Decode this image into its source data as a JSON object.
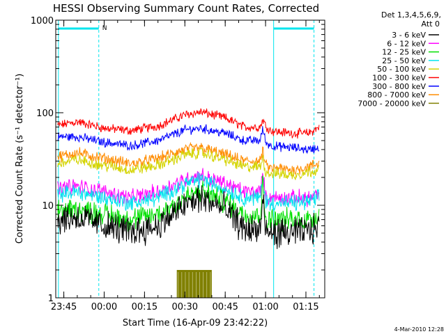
{
  "chart_data": {
    "type": "line",
    "title": "HESSI Observing Summary Count Rates, Corrected",
    "ylabel": "Corrected Count Rate (s⁻¹ detector⁻¹)",
    "xlabel": "Start Time (16-Apr-09 23:42:22)",
    "y_scale": "log",
    "ylim": [
      1,
      1000
    ],
    "xlim": [
      "23:42",
      "01:22"
    ],
    "y_ticks": [
      {
        "v": 1,
        "label": "1"
      },
      {
        "v": 10,
        "label": "10"
      },
      {
        "v": 100,
        "label": "100"
      },
      {
        "v": 1000,
        "label": "1000"
      }
    ],
    "x_ticks": [
      {
        "t": "23:45",
        "label": "23:45"
      },
      {
        "t": "00:00",
        "label": "00:00"
      },
      {
        "t": "00:15",
        "label": "00:15"
      },
      {
        "t": "00:30",
        "label": "00:30"
      },
      {
        "t": "00:45",
        "label": "00:45"
      },
      {
        "t": "01:00",
        "label": "01:00"
      },
      {
        "t": "01:15",
        "label": "01:15"
      }
    ],
    "legend": {
      "position": "right",
      "header": [
        "Det 1,3,4,5,6,9,",
        "Att 0"
      ],
      "entries": [
        {
          "label": "3 - 6 keV",
          "color": "#000000"
        },
        {
          "label": "6 - 12 keV",
          "color": "#ff00ff"
        },
        {
          "label": "12 - 25 keV",
          "color": "#00e000"
        },
        {
          "label": "25 - 50 keV",
          "color": "#00e5ee"
        },
        {
          "label": "50 - 100 keV",
          "color": "#d4d400"
        },
        {
          "label": "100 - 300 keV",
          "color": "#ff0000"
        },
        {
          "label": "300 - 800 keV",
          "color": "#0000ff"
        },
        {
          "label": "800 - 7000 keV",
          "color": "#ff8c00"
        },
        {
          "label": "7000 - 20000 keV",
          "color": "#808000"
        }
      ]
    },
    "series": [
      {
        "name": "100 - 300 keV",
        "color": "#ff0000",
        "noise": 0.04,
        "x": [
          "23:42",
          "23:50",
          "00:00",
          "00:10",
          "00:20",
          "00:30",
          "00:36",
          "00:45",
          "00:52",
          "00:58",
          "00:59",
          "01:00",
          "01:02",
          "01:05",
          "01:10",
          "01:16",
          "01:20"
        ],
        "y": [
          72,
          80,
          68,
          64,
          72,
          95,
          102,
          88,
          70,
          70,
          85,
          72,
          64,
          62,
          60,
          60,
          70
        ]
      },
      {
        "name": "300 - 800 keV",
        "color": "#0000ff",
        "noise": 0.04,
        "x": [
          "23:42",
          "23:50",
          "00:00",
          "00:10",
          "00:20",
          "00:30",
          "00:36",
          "00:45",
          "00:52",
          "00:58",
          "00:59",
          "01:00",
          "01:02",
          "01:05",
          "01:10",
          "01:16",
          "01:20"
        ],
        "y": [
          55,
          55,
          48,
          44,
          50,
          65,
          68,
          60,
          50,
          50,
          68,
          48,
          44,
          43,
          42,
          40,
          42
        ]
      },
      {
        "name": "800 - 7000 keV",
        "color": "#ff8c00",
        "noise": 0.05,
        "x": [
          "23:42",
          "23:50",
          "00:00",
          "00:10",
          "00:20",
          "00:30",
          "00:36",
          "00:45",
          "00:52",
          "00:58",
          "00:59",
          "01:00",
          "01:02",
          "01:05",
          "01:10",
          "01:16",
          "01:20"
        ],
        "y": [
          33,
          37,
          32,
          28,
          32,
          40,
          42,
          35,
          30,
          30,
          38,
          27,
          25,
          25,
          24,
          26,
          28
        ]
      },
      {
        "name": "50 - 100 keV",
        "color": "#d4d400",
        "noise": 0.05,
        "x": [
          "23:42",
          "23:50",
          "00:00",
          "00:10",
          "00:20",
          "00:30",
          "00:36",
          "00:45",
          "00:52",
          "00:58",
          "00:59",
          "01:00",
          "01:02",
          "01:05",
          "01:10",
          "01:16",
          "01:20"
        ],
        "y": [
          28,
          31,
          27,
          24,
          27,
          35,
          37,
          31,
          26,
          26,
          33,
          23,
          22,
          22,
          21,
          23,
          25
        ]
      },
      {
        "name": "6 - 12 keV",
        "color": "#ff00ff",
        "noise": 0.07,
        "x": [
          "23:42",
          "23:50",
          "00:00",
          "00:10",
          "00:20",
          "00:30",
          "00:36",
          "00:45",
          "00:52",
          "00:58",
          "00:59",
          "01:00",
          "01:02",
          "01:05",
          "01:10",
          "01:16",
          "01:20"
        ],
        "y": [
          15,
          16,
          14,
          12,
          14,
          19,
          21,
          17,
          14,
          14,
          22,
          12,
          12,
          12,
          12,
          12,
          13
        ]
      },
      {
        "name": "25 - 50 keV",
        "color": "#00e5ee",
        "noise": 0.07,
        "x": [
          "23:42",
          "23:50",
          "00:00",
          "00:10",
          "00:20",
          "00:30",
          "00:36",
          "00:45",
          "00:52",
          "00:58",
          "00:59",
          "01:00",
          "01:02",
          "01:05",
          "01:10",
          "01:16",
          "01:20"
        ],
        "y": [
          13,
          14,
          12,
          10.5,
          12,
          17,
          19,
          15,
          12,
          12,
          20,
          11,
          10.5,
          10.5,
          10.5,
          11,
          12
        ]
      },
      {
        "name": "12 - 25 keV",
        "color": "#00e000",
        "noise": 0.1,
        "x": [
          "23:42",
          "23:50",
          "00:00",
          "00:10",
          "00:20",
          "00:30",
          "00:36",
          "00:45",
          "00:52",
          "00:58",
          "00:59",
          "01:00",
          "01:02",
          "01:05",
          "01:10",
          "01:16",
          "01:20"
        ],
        "y": [
          9,
          9,
          8,
          7,
          8,
          12,
          14,
          11,
          8,
          8,
          17,
          7,
          7,
          7,
          7,
          7,
          8
        ]
      },
      {
        "name": "3 - 6 keV",
        "color": "#000000",
        "noise": 0.13,
        "x": [
          "23:42",
          "23:50",
          "00:00",
          "00:10",
          "00:20",
          "00:30",
          "00:36",
          "00:45",
          "00:52",
          "00:58",
          "00:59",
          "01:00",
          "01:02",
          "01:05",
          "01:10",
          "01:16",
          "01:20"
        ],
        "y": [
          7,
          7.5,
          6,
          5.2,
          6,
          10,
          12,
          9,
          5.5,
          5.5,
          12,
          5,
          5,
          5,
          5,
          5.2,
          6
        ]
      },
      {
        "name": "7000 - 20000 keV",
        "color": "#808000",
        "noise": 0.0,
        "x": [
          "00:27",
          "00:40"
        ],
        "y": [
          2,
          2
        ]
      }
    ],
    "annotations": {
      "vertical_lines": [
        {
          "t": "23:43",
          "style": "solid",
          "color": "#00e5ee"
        },
        {
          "t": "23:58",
          "style": "dashed",
          "color": "#00e5ee"
        },
        {
          "t": "01:03",
          "style": "solid",
          "color": "#00e5ee"
        },
        {
          "t": "01:18",
          "style": "dashed",
          "color": "#00e5ee"
        }
      ],
      "top_bars": [
        {
          "t0": "23:43",
          "t1": "23:58",
          "color": "#00e5ee",
          "label": "N"
        },
        {
          "t0": "01:03",
          "t1": "01:18",
          "color": "#00e5ee",
          "label": ""
        }
      ]
    },
    "footer_date": "4-Mar-2010 12:28"
  }
}
